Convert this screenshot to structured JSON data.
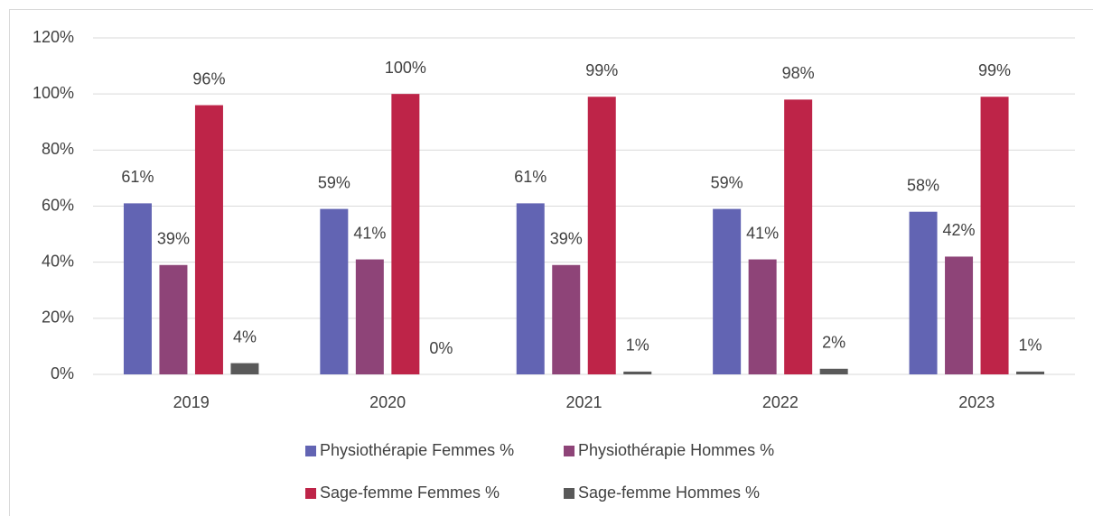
{
  "chart_data": {
    "type": "bar",
    "categories": [
      "2019",
      "2020",
      "2021",
      "2022",
      "2023"
    ],
    "series": [
      {
        "name": "Physiothérapie Femmes %",
        "color": "#6264b3",
        "values": [
          61,
          59,
          61,
          59,
          58
        ],
        "value_labels": [
          "61%",
          "59%",
          "61%",
          "59%",
          "58%"
        ]
      },
      {
        "name": "Physiothérapie Hommes %",
        "color": "#8e4478",
        "values": [
          39,
          41,
          39,
          41,
          42
        ],
        "value_labels": [
          "39%",
          "41%",
          "39%",
          "41%",
          "42%"
        ]
      },
      {
        "name": "Sage-femme Femmes %",
        "color": "#be2448",
        "values": [
          96,
          100,
          99,
          98,
          99
        ],
        "value_labels": [
          "96%",
          "100%",
          "99%",
          "98%",
          "99%"
        ]
      },
      {
        "name": "Sage-femme Hommes %",
        "color": "#595959",
        "values": [
          4,
          0,
          1,
          2,
          1
        ],
        "value_labels": [
          "4%",
          "0%",
          "1%",
          "2%",
          "1%"
        ]
      }
    ],
    "ylim": [
      0,
      120
    ],
    "yticks": [
      {
        "value": 0,
        "label": "0%"
      },
      {
        "value": 20,
        "label": "20%"
      },
      {
        "value": 40,
        "label": "40%"
      },
      {
        "value": 60,
        "label": "60%"
      },
      {
        "value": 80,
        "label": "80%"
      },
      {
        "value": 100,
        "label": "100%"
      },
      {
        "value": 120,
        "label": "120%"
      }
    ],
    "grid": true,
    "legend": "bottom"
  }
}
